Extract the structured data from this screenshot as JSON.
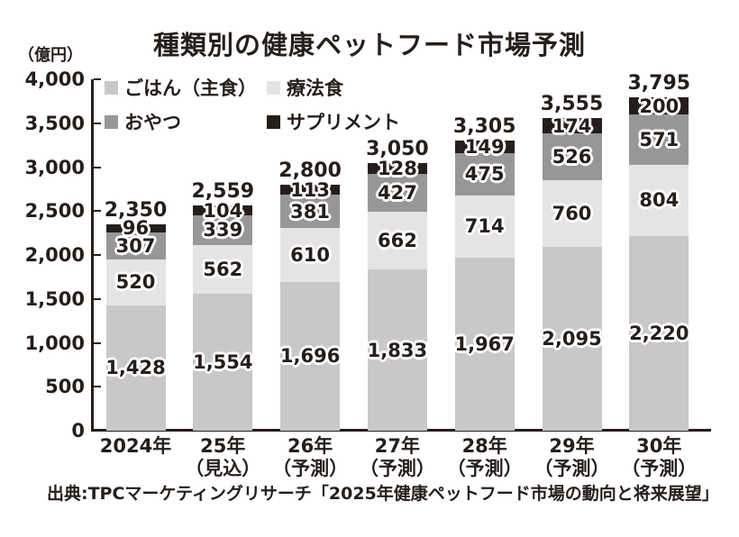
{
  "page": {
    "title": "種類別の健康ペットフード市場予測",
    "unit_label": "（億円）",
    "source": "出典:TPCマーケティングリサーチ「2025年健康ペットフード市場の動向と将来展望」"
  },
  "chart_data": {
    "type": "bar",
    "stacked": true,
    "title": "種類別の健康ペットフード市場予測",
    "ylabel": "（億円）",
    "xlabel": "",
    "ylim": [
      0,
      4000
    ],
    "ytick_step": 500,
    "grid": false,
    "legend_position": "top-left-inside",
    "categories": [
      {
        "line1": "2024年",
        "line2": ""
      },
      {
        "line1": "25年",
        "line2": "（見込）"
      },
      {
        "line1": "26年",
        "line2": "（予測）"
      },
      {
        "line1": "27年",
        "line2": "（予測）"
      },
      {
        "line1": "28年",
        "line2": "（予測）"
      },
      {
        "line1": "29年",
        "line2": "（予測）"
      },
      {
        "line1": "30年",
        "line2": "（予測）"
      }
    ],
    "series": [
      {
        "name": "ごはん（主食）",
        "color": "#c8c8c9",
        "values": [
          1428,
          1554,
          1696,
          1833,
          1967,
          2095,
          2220
        ]
      },
      {
        "name": "療法食",
        "color": "#e4e4e5",
        "values": [
          520,
          562,
          610,
          662,
          714,
          760,
          804
        ]
      },
      {
        "name": "おやつ",
        "color": "#979797",
        "values": [
          307,
          339,
          381,
          427,
          475,
          526,
          571
        ]
      },
      {
        "name": "サプリメント",
        "color": "#251e1b",
        "values": [
          96,
          104,
          113,
          128,
          149,
          174,
          200
        ]
      }
    ],
    "totals": [
      2350,
      2559,
      2800,
      3050,
      3305,
      3555,
      3795
    ],
    "colors": {
      "text": "#251e1b",
      "background": "#ffffff"
    },
    "source": "出典:TPCマーケティングリサーチ「2025年健康ペットフード市場の動向と将来展望」"
  }
}
